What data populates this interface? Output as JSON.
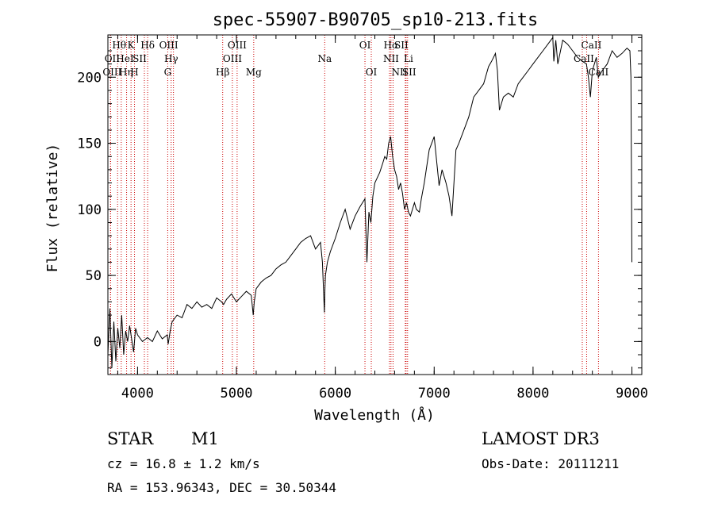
{
  "chart_data": {
    "type": "line",
    "title": "spec-55907-B90705_sp10-213.fits",
    "xlabel": "Wavelength (Å)",
    "ylabel": "Flux (relative)",
    "xlim": [
      3700,
      9100
    ],
    "ylim": [
      -25,
      232
    ],
    "xticks": [
      4000,
      5000,
      6000,
      7000,
      8000,
      9000
    ],
    "yticks": [
      0,
      50,
      100,
      150,
      200
    ],
    "xminor_step": 200,
    "yminor_step": 10,
    "series": [
      {
        "name": "flux",
        "x": [
          3700,
          3720,
          3740,
          3760,
          3780,
          3800,
          3820,
          3840,
          3860,
          3880,
          3900,
          3920,
          3940,
          3960,
          3980,
          4000,
          4050,
          4100,
          4150,
          4200,
          4250,
          4300,
          4310,
          4330,
          4350,
          4400,
          4450,
          4500,
          4550,
          4600,
          4650,
          4700,
          4750,
          4800,
          4850,
          4870,
          4900,
          4950,
          5000,
          5050,
          5100,
          5150,
          5170,
          5180,
          5200,
          5250,
          5300,
          5350,
          5400,
          5450,
          5500,
          5550,
          5600,
          5650,
          5700,
          5750,
          5800,
          5850,
          5870,
          5890,
          5895,
          5900,
          5920,
          5950,
          6000,
          6050,
          6100,
          6150,
          6200,
          6250,
          6300,
          6320,
          6340,
          6360,
          6380,
          6400,
          6450,
          6480,
          6500,
          6520,
          6540,
          6560,
          6580,
          6600,
          6620,
          6640,
          6660,
          6680,
          6700,
          6720,
          6740,
          6760,
          6800,
          6820,
          6850,
          6870,
          6900,
          6950,
          7000,
          7020,
          7050,
          7080,
          7100,
          7120,
          7150,
          7180,
          7200,
          7220,
          7250,
          7300,
          7350,
          7400,
          7450,
          7500,
          7550,
          7580,
          7600,
          7620,
          7640,
          7660,
          7680,
          7700,
          7750,
          7800,
          7850,
          7900,
          7950,
          8000,
          8050,
          8100,
          8150,
          8200,
          8210,
          8230,
          8250,
          8300,
          8350,
          8400,
          8450,
          8500,
          8540,
          8560,
          8580,
          8600,
          8640,
          8660,
          8700,
          8750,
          8800,
          8850,
          8900,
          8950,
          8980,
          8990,
          9000
        ],
        "values": [
          -10,
          25,
          -20,
          15,
          -15,
          10,
          -5,
          20,
          -10,
          8,
          0,
          12,
          2,
          -8,
          10,
          5,
          0,
          3,
          0,
          8,
          2,
          5,
          -2,
          8,
          15,
          20,
          18,
          28,
          25,
          30,
          26,
          28,
          25,
          33,
          30,
          28,
          32,
          36,
          30,
          34,
          38,
          35,
          20,
          30,
          40,
          45,
          48,
          50,
          55,
          58,
          60,
          65,
          70,
          75,
          78,
          80,
          70,
          75,
          60,
          22,
          40,
          50,
          60,
          68,
          78,
          90,
          100,
          85,
          95,
          102,
          108,
          60,
          98,
          90,
          110,
          120,
          128,
          135,
          140,
          138,
          150,
          155,
          140,
          130,
          125,
          115,
          120,
          112,
          100,
          105,
          98,
          95,
          105,
          100,
          98,
          108,
          120,
          145,
          155,
          140,
          118,
          130,
          125,
          120,
          110,
          95,
          120,
          145,
          150,
          160,
          170,
          185,
          190,
          195,
          208,
          212,
          215,
          218,
          205,
          175,
          180,
          185,
          188,
          185,
          195,
          200,
          205,
          210,
          215,
          220,
          225,
          230,
          212,
          228,
          210,
          228,
          225,
          220,
          215,
          212,
          210,
          200,
          185,
          205,
          215,
          200,
          205,
          210,
          220,
          215,
          218,
          222,
          220,
          200,
          60
        ]
      }
    ],
    "lines": [
      {
        "name": "Hθ",
        "x": 3798,
        "row": 0,
        "dx": 2
      },
      {
        "name": "K",
        "x": 3934,
        "row": 0,
        "dx": 0
      },
      {
        "name": "Hδ",
        "x": 4102,
        "row": 0,
        "dx": 0
      },
      {
        "name": "OII",
        "x": 3727,
        "row": 1,
        "dx": 2
      },
      {
        "name": "HeI",
        "x": 3889,
        "row": 1,
        "dx": -2
      },
      {
        "name": "SII",
        "x": 4069,
        "row": 1,
        "dx": -6
      },
      {
        "name": "OIII",
        "x": 3727,
        "row": 2,
        "dx": 2
      },
      {
        "name": "Hη",
        "x": 3835,
        "row": 2,
        "dx": 6
      },
      {
        "name": "H",
        "x": 3969,
        "row": 2,
        "dx": 0
      },
      {
        "name": "OIII",
        "x": 4363,
        "row": 0,
        "dx": -6
      },
      {
        "name": "Hγ",
        "x": 4340,
        "row": 1,
        "dx": 0
      },
      {
        "name": "G",
        "x": 4305,
        "row": 2,
        "dx": 0
      },
      {
        "name": "OIII",
        "x": 5007,
        "row": 0,
        "dx": 0
      },
      {
        "name": "OIII",
        "x": 4959,
        "row": 1,
        "dx": 0
      },
      {
        "name": "Hβ",
        "x": 4861,
        "row": 2,
        "dx": 0
      },
      {
        "name": "Mg",
        "x": 5175,
        "row": 2,
        "dx": 0
      },
      {
        "name": "Na",
        "x": 5893,
        "row": 1,
        "dx": 0
      },
      {
        "name": "OI",
        "x": 6300,
        "row": 0,
        "dx": 0
      },
      {
        "name": "OI",
        "x": 6364,
        "row": 2,
        "dx": 0
      },
      {
        "name": "Hα",
        "x": 6563,
        "row": 0,
        "dx": 0
      },
      {
        "name": "SII",
        "x": 6716,
        "row": 0,
        "dx": -6
      },
      {
        "name": "NII",
        "x": 6548,
        "row": 1,
        "dx": 2
      },
      {
        "name": "Li",
        "x": 6708,
        "row": 1,
        "dx": 4
      },
      {
        "name": "NII",
        "x": 6584,
        "row": 2,
        "dx": 8
      },
      {
        "name": "SII",
        "x": 6731,
        "row": 2,
        "dx": 2
      },
      {
        "name": "CaII",
        "x": 8542,
        "row": 0,
        "dx": 6
      },
      {
        "name": "CaII",
        "x": 8498,
        "row": 1,
        "dx": 2
      },
      {
        "name": "CaII",
        "x": 8662,
        "row": 2,
        "dx": 0
      }
    ]
  },
  "info": {
    "object_class": "STAR",
    "subclass": "M1",
    "survey": "LAMOST DR3",
    "cz": "cz = 16.8 ± 1.2 km/s",
    "obs_date": "Obs-Date: 20111211",
    "coords": "RA = 153.96343, DEC =  30.50344"
  },
  "colors": {
    "line_marker": "#cc0000",
    "spectrum": "#000000"
  }
}
